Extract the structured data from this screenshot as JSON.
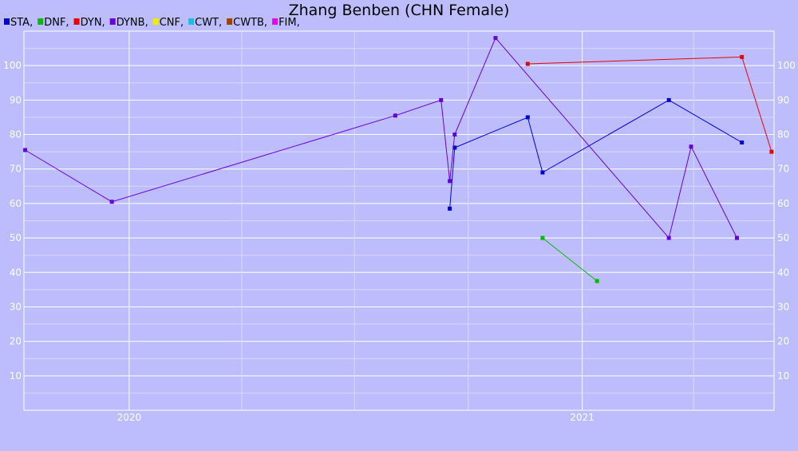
{
  "chart_data": {
    "type": "line",
    "title": "Zhang Benben (CHN Female)",
    "xlabel": "",
    "ylabel": "",
    "xlim": [
      "2019-10-08",
      "2021-06-05"
    ],
    "ylim": [
      0,
      110
    ],
    "y_ticks": [
      10,
      20,
      30,
      40,
      50,
      60,
      70,
      80,
      90,
      100
    ],
    "x_tick_labels": [
      {
        "date": "2020-01-01",
        "label": "2020"
      },
      {
        "date": "2021-01-01",
        "label": "2021"
      }
    ],
    "x_minor_dates": [
      "2020-04-01",
      "2020-07-01",
      "2020-10-01",
      "2021-04-01"
    ],
    "grid": true,
    "legend_position": "top-left",
    "legend": [
      {
        "label": "STA,",
        "color": "#0000dd"
      },
      {
        "label": "DNF,",
        "color": "#00bb00"
      },
      {
        "label": "DYN,",
        "color": "#ee0000"
      },
      {
        "label": "DYNB,",
        "color": "#6600dd"
      },
      {
        "label": "CNF,",
        "color": "#eeee00"
      },
      {
        "label": "CWT,",
        "color": "#22bbdd"
      },
      {
        "label": "CWTB,",
        "color": "#994400"
      },
      {
        "label": "FIM,",
        "color": "#ee00ee"
      }
    ],
    "series": [
      {
        "name": "STA",
        "color": "#0000dd",
        "points": [
          {
            "x": "2020-09-16",
            "y": 58.5
          },
          {
            "x": "2020-09-20",
            "y": 76.2
          },
          {
            "x": "2020-11-18",
            "y": 85.0
          },
          {
            "x": "2020-11-30",
            "y": 69.0
          },
          {
            "x": "2021-03-12",
            "y": 90.0
          },
          {
            "x": "2021-05-10",
            "y": 77.7
          }
        ]
      },
      {
        "name": "DNF",
        "color": "#00bb00",
        "points": [
          {
            "x": "2020-11-30",
            "y": 50.0
          },
          {
            "x": "2021-01-13",
            "y": 37.5
          }
        ]
      },
      {
        "name": "DYN",
        "color": "#ee0000",
        "points": [
          {
            "x": "2020-11-18",
            "y": 100.5
          },
          {
            "x": "2021-05-10",
            "y": 102.5
          },
          {
            "x": "2021-06-03",
            "y": 75.0
          }
        ]
      },
      {
        "name": "DYNB",
        "color": "#6600dd",
        "points": [
          {
            "x": "2019-10-09",
            "y": 75.5
          },
          {
            "x": "2019-12-18",
            "y": 60.5
          },
          {
            "x": "2020-08-03",
            "y": 85.5
          },
          {
            "x": "2020-09-09",
            "y": 90.0
          },
          {
            "x": "2020-09-16",
            "y": 66.5
          },
          {
            "x": "2020-09-20",
            "y": 80.0
          },
          {
            "x": "2020-10-23",
            "y": 108.0
          },
          {
            "x": "2021-03-12",
            "y": 50.0
          },
          {
            "x": "2021-03-30",
            "y": 76.5
          },
          {
            "x": "2021-05-06",
            "y": 50.0
          }
        ]
      }
    ]
  }
}
